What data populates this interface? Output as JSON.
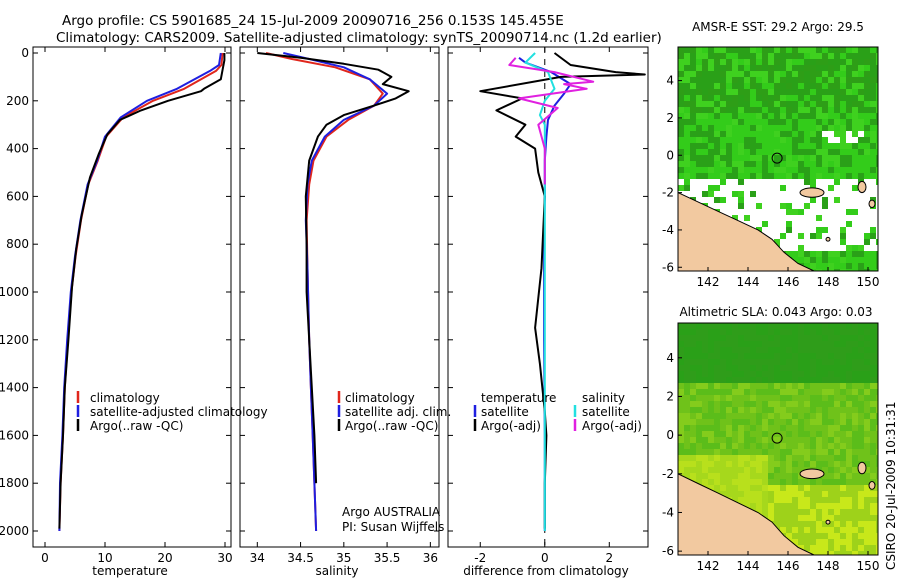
{
  "header": {
    "line1": "Argo profile: CS 5901685_24 15-Jul-2009 20090716_256 0.153S 145.455E",
    "line2": "Climatology: CARS2009. Satellite-adjusted climatology: synTS_20090714.nc (1.2d earlier)"
  },
  "credit": {
    "org": "Argo AUSTRALIA",
    "pi": "PI: Susan Wijffels",
    "stamp": "CSIRO 20-Jul-2009 10:31:31"
  },
  "colors": {
    "climatology": "#e0261c",
    "satellite": "#1f1fe0",
    "argo": "#000000",
    "salinity_satellite": "#22e0e0",
    "salinity_argo": "#e020e0",
    "land": "#f2c9a0",
    "ocean_bright": "#33cc1a",
    "ocean_dark": "#2aa018",
    "ocean_yellow": "#c8e81a"
  },
  "chart_data": [
    {
      "type": "line",
      "xlabel": "temperature",
      "ylabel": "",
      "xlim": [
        -2,
        31
      ],
      "xticks": [
        0,
        10,
        20,
        30
      ],
      "ylim": [
        2000,
        0
      ],
      "yticks": [
        0,
        200,
        400,
        600,
        800,
        1000,
        1200,
        1400,
        1600,
        1800,
        2000
      ],
      "legend": [
        "climatology",
        "satellite-adjusted climatology",
        "Argo(..raw -QC)"
      ],
      "series": [
        {
          "name": "climatology",
          "color": "climatology",
          "x": [
            29.6,
            29.4,
            28.5,
            23.2,
            18.0,
            13.0,
            10.2,
            8.8,
            7.2,
            6.0,
            5.1,
            4.4,
            3.8,
            3.3,
            3.0,
            2.6,
            2.4
          ],
          "y": [
            0,
            50,
            75,
            150,
            200,
            270,
            350,
            450,
            550,
            700,
            850,
            1000,
            1200,
            1400,
            1600,
            1800,
            2000
          ]
        },
        {
          "name": "satellite-adjusted climatology",
          "color": "satellite",
          "x": [
            29.3,
            29.0,
            27.5,
            22.0,
            17.0,
            12.6,
            10.0,
            8.7,
            7.1,
            5.9,
            5.0,
            4.3,
            3.7,
            3.2,
            2.9,
            2.5,
            2.4
          ],
          "y": [
            0,
            50,
            75,
            150,
            200,
            270,
            350,
            450,
            550,
            700,
            850,
            1000,
            1200,
            1400,
            1600,
            1800,
            2000
          ]
        },
        {
          "name": "Argo(..raw -QC)",
          "color": "argo",
          "x": [
            29.9,
            29.9,
            29.6,
            29.3,
            26.5,
            26.0,
            20.5,
            16.0,
            12.5,
            10.4,
            9.0,
            7.5,
            6.1,
            5.2,
            4.5,
            3.9,
            3.3,
            3.0,
            2.6,
            2.4
          ],
          "y": [
            0,
            30,
            70,
            110,
            150,
            160,
            200,
            240,
            280,
            340,
            420,
            520,
            680,
            820,
            980,
            1200,
            1400,
            1600,
            1800,
            1990
          ]
        }
      ]
    },
    {
      "type": "line",
      "xlabel": "salinity",
      "xlim": [
        33.8,
        36.1
      ],
      "xticks": [
        34,
        34.5,
        35,
        35.5,
        36
      ],
      "ylim": [
        2000,
        0
      ],
      "legend": [
        "climatology",
        "satellite adj. clim.",
        "Argo(..raw -QC)"
      ],
      "series": [
        {
          "name": "climatology",
          "color": "climatology",
          "x": [
            34.1,
            34.4,
            34.9,
            35.3,
            35.45,
            35.35,
            35.05,
            34.8,
            34.65,
            34.6,
            34.57,
            34.58,
            34.6,
            34.62,
            34.64,
            34.66,
            34.68
          ],
          "y": [
            0,
            25,
            60,
            110,
            170,
            220,
            280,
            350,
            450,
            550,
            700,
            900,
            1200,
            1400,
            1600,
            1800,
            2000
          ]
        },
        {
          "name": "satellite adj. clim.",
          "color": "satellite",
          "x": [
            34.3,
            34.6,
            35.0,
            35.3,
            35.5,
            35.35,
            35.0,
            34.78,
            34.63,
            34.58,
            34.56,
            34.58,
            34.6,
            34.62,
            34.64,
            34.66,
            34.68
          ],
          "y": [
            0,
            25,
            60,
            110,
            170,
            220,
            280,
            350,
            450,
            550,
            700,
            900,
            1200,
            1400,
            1600,
            1800,
            2000
          ]
        },
        {
          "name": "Argo(..raw -QC)",
          "color": "argo",
          "x": [
            34.0,
            34.5,
            35.0,
            35.4,
            35.55,
            35.45,
            35.75,
            35.6,
            35.35,
            35.0,
            34.8,
            34.7,
            34.6,
            34.56,
            34.57,
            34.57,
            34.6,
            34.63,
            34.66,
            34.68
          ],
          "y": [
            0,
            20,
            45,
            70,
            100,
            130,
            160,
            190,
            220,
            260,
            300,
            350,
            450,
            600,
            800,
            1000,
            1200,
            1400,
            1600,
            1800
          ]
        }
      ]
    },
    {
      "type": "line",
      "xlabel": "difference from climatology",
      "xlim": [
        -3,
        3.2
      ],
      "xticks": [
        -2,
        0,
        2
      ],
      "ylim": [
        2000,
        0
      ],
      "legend": [
        "temperature",
        "satellite",
        "Argo(-adj)",
        "salinity",
        "satellite",
        "Argo(-adj)"
      ],
      "series": [
        {
          "name": "temperature satellite",
          "color": "satellite",
          "x": [
            -0.8,
            -0.6,
            0.2,
            0.8,
            0.6,
            0.3,
            0.1,
            0.05,
            0.0,
            0.0,
            -0.02,
            -0.02,
            0.0,
            0.0
          ],
          "y": [
            20,
            40,
            80,
            130,
            170,
            220,
            280,
            350,
            450,
            600,
            800,
            1200,
            1600,
            2000
          ]
        },
        {
          "name": "temperature Argo(-adj)",
          "color": "argo",
          "x": [
            0.3,
            0.8,
            2.2,
            3.1,
            0.5,
            -2.0,
            -0.7,
            -1.5,
            -0.6,
            -0.9,
            -0.3,
            -0.2,
            0.0,
            -0.1,
            -0.3,
            -0.15,
            0.0,
            0.05,
            0.0,
            0.0
          ],
          "y": [
            0,
            50,
            80,
            90,
            100,
            160,
            190,
            240,
            300,
            350,
            400,
            500,
            600,
            900,
            1150,
            1300,
            1500,
            1600,
            1800,
            1990
          ]
        },
        {
          "name": "salinity satellite",
          "color": "salinity_satellite",
          "x": [
            -0.3,
            -0.6,
            0.1,
            0.3,
            0.0,
            -0.15,
            0.0,
            0.0,
            0.0,
            0.0,
            0.0
          ],
          "y": [
            0,
            40,
            80,
            150,
            200,
            260,
            300,
            500,
            1000,
            1500,
            2000
          ]
        },
        {
          "name": "salinity Argo(-adj)",
          "color": "salinity_argo",
          "x": [
            -0.9,
            -1.1,
            0.3,
            1.5,
            0.6,
            1.3,
            -0.8,
            0.4,
            -0.2,
            0.0,
            0.0
          ],
          "y": [
            20,
            50,
            80,
            120,
            130,
            150,
            190,
            230,
            300,
            400,
            550
          ]
        }
      ]
    },
    {
      "type": "heatmap",
      "title": "AMSR-E SST: 29.2 Argo: 29.5",
      "xlim": [
        140.5,
        150.5
      ],
      "xticks": [
        142,
        144,
        146,
        148,
        150
      ],
      "ylim": [
        -6.2,
        5.8
      ],
      "yticks": [
        -6,
        -4,
        -2,
        0,
        2,
        4
      ],
      "marker": {
        "lon": 145.455,
        "lat": -0.153
      }
    },
    {
      "type": "heatmap",
      "title": "Altimetric SLA: 0.043 Argo: 0.03",
      "xlim": [
        140.5,
        150.5
      ],
      "xticks": [
        142,
        144,
        146,
        148,
        150
      ],
      "ylim": [
        -6.2,
        5.8
      ],
      "yticks": [
        -6,
        -4,
        -2,
        0,
        2,
        4
      ],
      "marker": {
        "lon": 145.455,
        "lat": -0.153
      }
    }
  ]
}
